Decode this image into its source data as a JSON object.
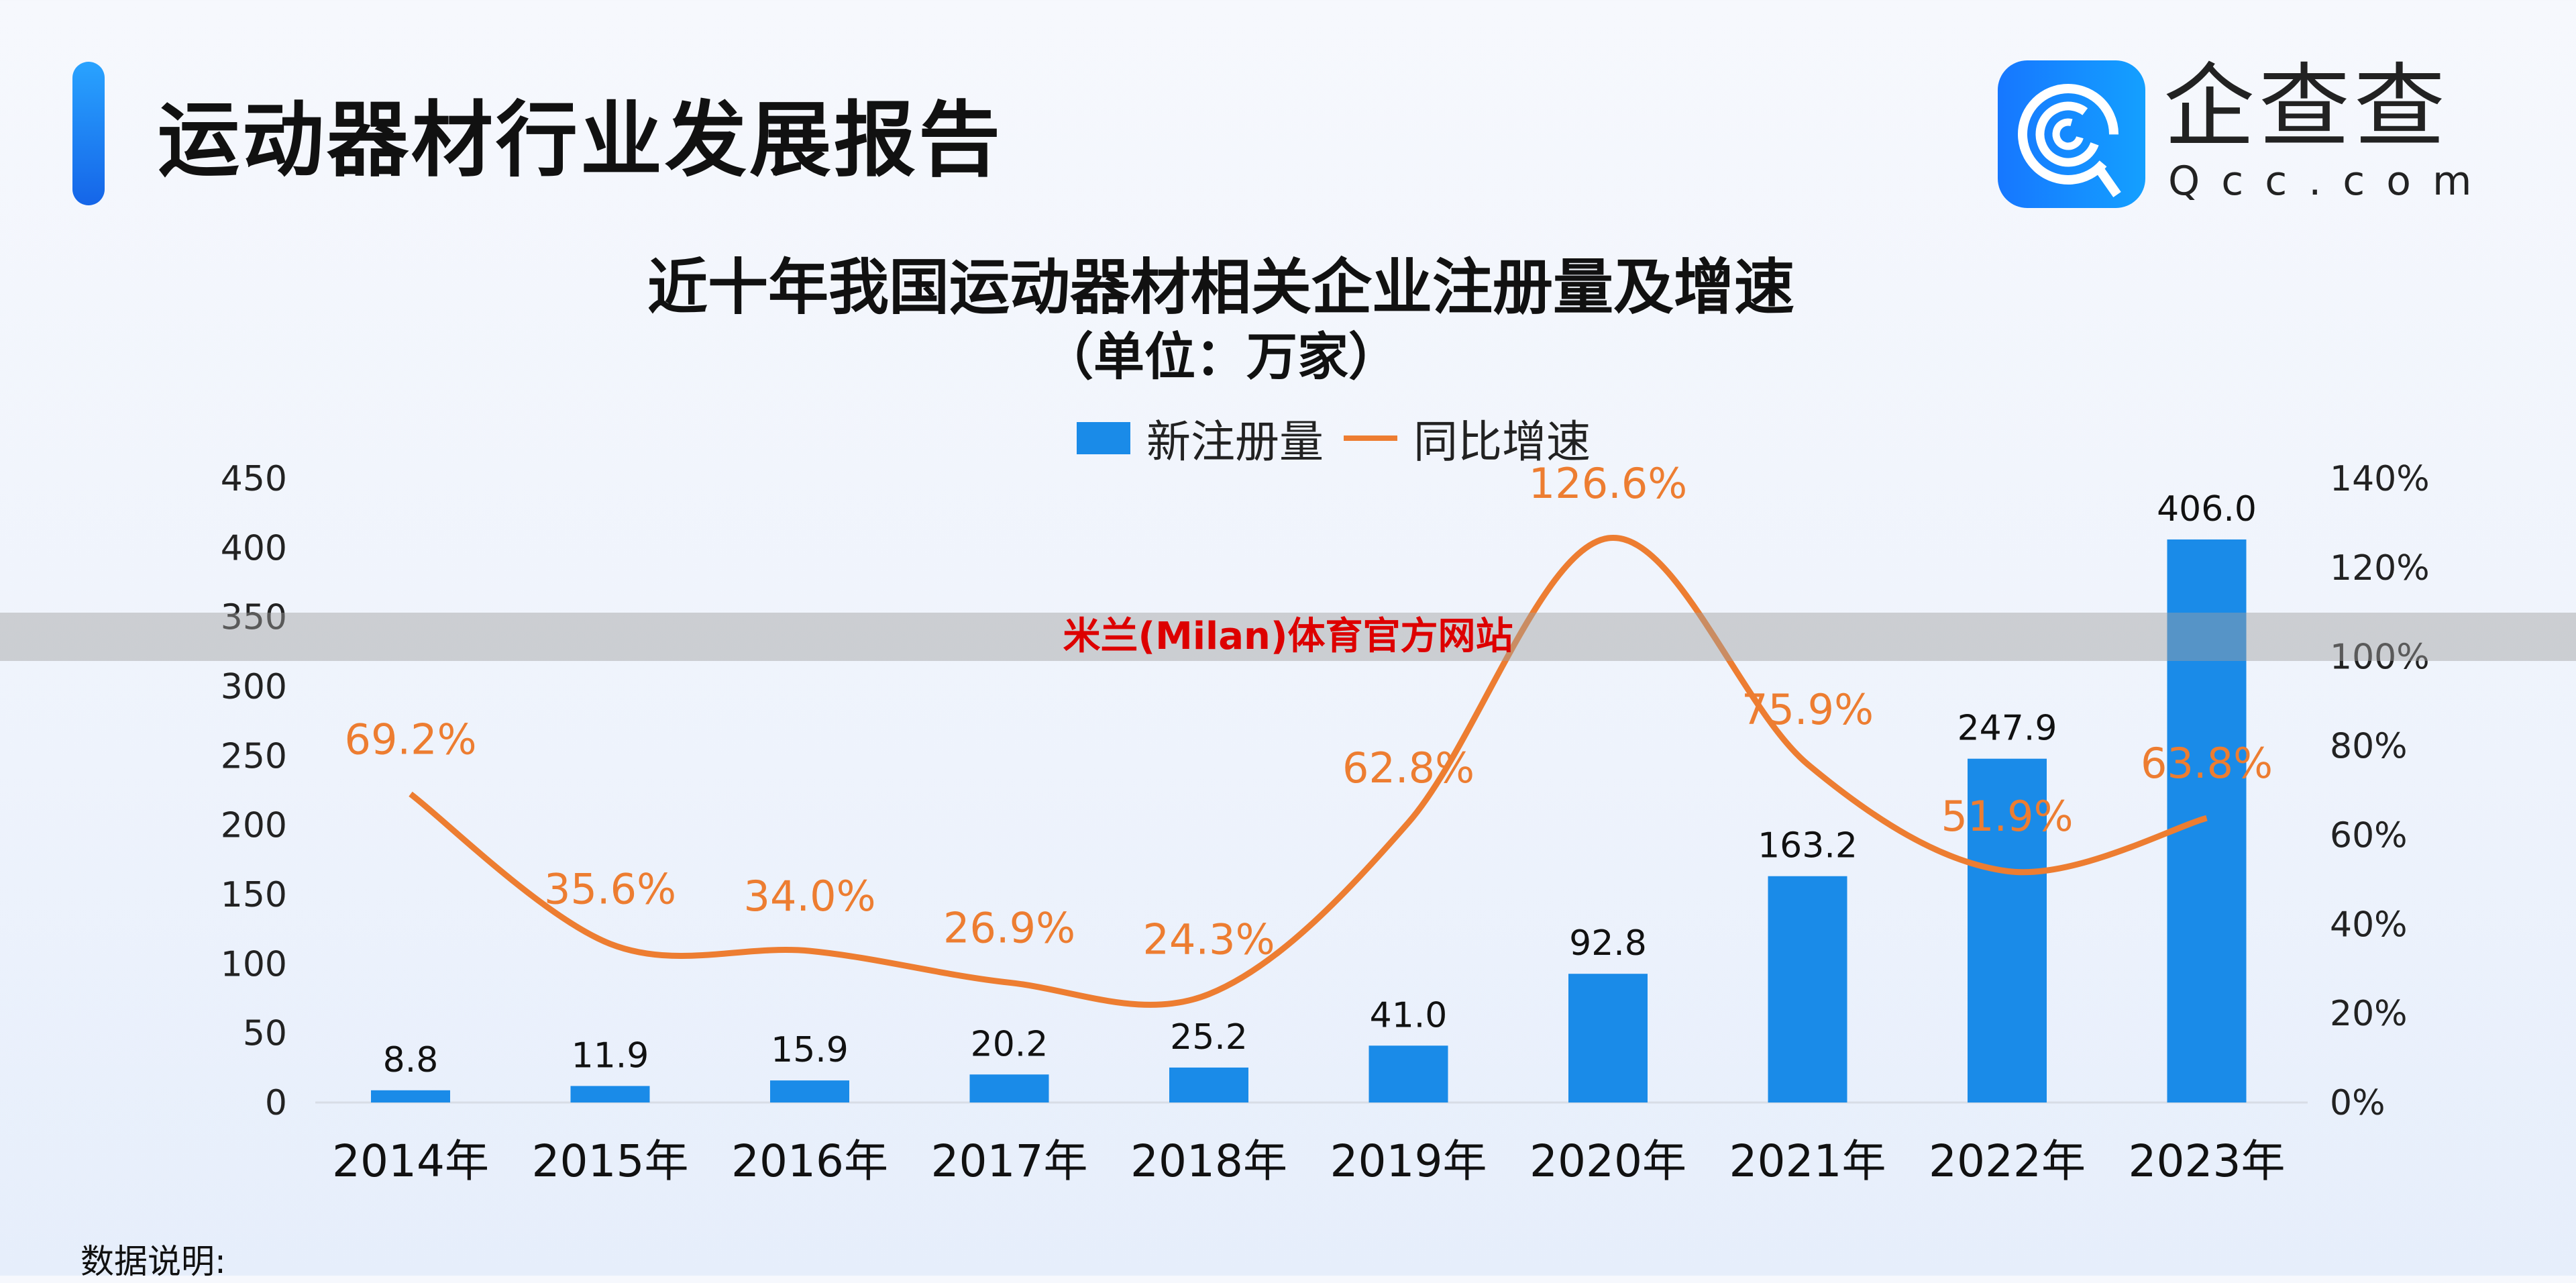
{
  "header": {
    "title": "运动器材行业发展报告",
    "brand_cn": "企查查",
    "brand_en": "Qcc.com"
  },
  "watermark": "米兰(Milan)体育官方网站",
  "footer": {
    "note": "数据说明:"
  },
  "colors": {
    "bar": "#1a8be8",
    "line": "#ed7d31",
    "accent": "#1a7cf0"
  },
  "chart_data": {
    "type": "bar+line",
    "title": "近十年我国运动器材相关企业注册量及增速",
    "subtitle": "（单位：万家）",
    "categories": [
      "2014年",
      "2015年",
      "2016年",
      "2017年",
      "2018年",
      "2019年",
      "2020年",
      "2021年",
      "2022年",
      "2023年"
    ],
    "series": [
      {
        "name": "新注册量",
        "type": "bar",
        "axis": "left",
        "values": [
          8.8,
          11.9,
          15.9,
          20.2,
          25.2,
          41.0,
          92.8,
          163.2,
          247.9,
          406.0
        ],
        "labels": [
          "8.8",
          "11.9",
          "15.9",
          "20.2",
          "25.2",
          "41.0",
          "92.8",
          "163.2",
          "247.9",
          "406.0"
        ]
      },
      {
        "name": "同比增速",
        "type": "line",
        "axis": "right",
        "values": [
          69.2,
          35.6,
          34.0,
          26.9,
          24.3,
          62.8,
          126.6,
          75.9,
          51.9,
          63.8
        ],
        "labels": [
          "69.2%",
          "35.6%",
          "34.0%",
          "26.9%",
          "24.3%",
          "62.8%",
          "126.6%",
          "75.9%",
          "51.9%",
          "63.8%"
        ]
      }
    ],
    "left_axis": {
      "ylim": [
        0,
        450
      ],
      "ticks": [
        "0",
        "50",
        "100",
        "150",
        "200",
        "250",
        "300",
        "350",
        "400",
        "450"
      ]
    },
    "right_axis": {
      "ylim": [
        0,
        140
      ],
      "ticks": [
        "0%",
        "20%",
        "40%",
        "60%",
        "80%",
        "100%",
        "120%",
        "140%"
      ]
    },
    "legend": "top",
    "grid": false
  }
}
